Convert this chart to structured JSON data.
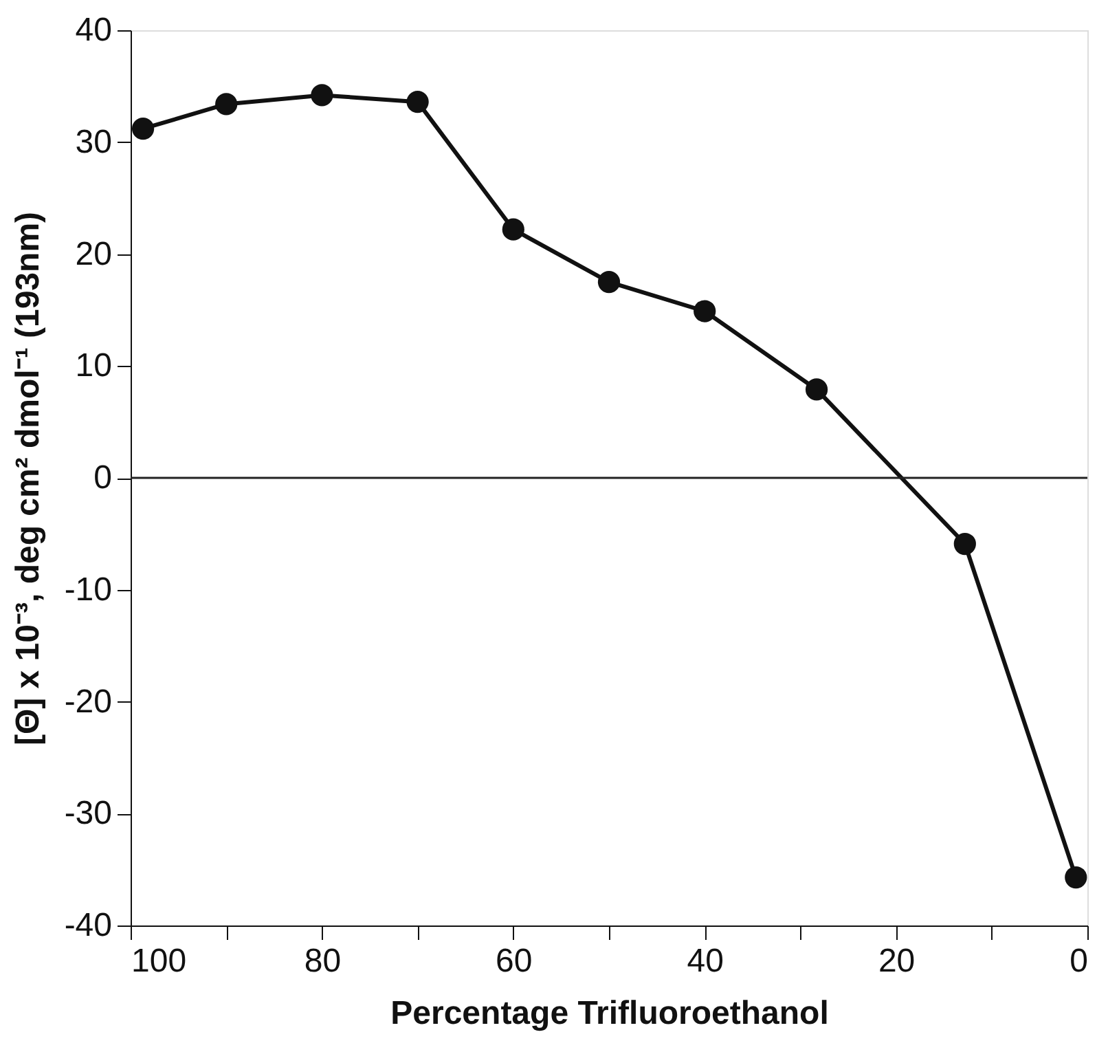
{
  "chart_data": {
    "type": "line",
    "xlabel": "Percentage Trifluoroethanol",
    "ylabel": "[Θ] x 10⁻³, deg cm² dmol⁻¹  (193nm)",
    "x": [
      98.7,
      90,
      80,
      70,
      60,
      50,
      40,
      28.3,
      12.8,
      1.2
    ],
    "series": [
      {
        "color": "#111111",
        "values": [
          31.2,
          33.4,
          34.2,
          33.6,
          22.2,
          17.5,
          14.9,
          7.9,
          -5.9,
          -35.7
        ]
      }
    ],
    "xlim": [
      100,
      0
    ],
    "xticks": [
      100,
      {
        "value": 90,
        "label": null
      },
      80,
      {
        "value": 70,
        "label": null
      },
      60,
      {
        "value": 50,
        "label": null
      },
      40,
      {
        "value": 30,
        "label": null
      },
      20,
      {
        "value": 10,
        "label": null
      },
      0
    ],
    "ylim": [
      -40,
      40
    ],
    "yticks": [
      -40,
      -30,
      -20,
      -10,
      0,
      10,
      20,
      30,
      40
    ],
    "ref_lines": [
      {
        "axis": "y",
        "value": 0
      }
    ],
    "marker": "circle",
    "line_style": "solid",
    "grid": false,
    "legend": false
  }
}
